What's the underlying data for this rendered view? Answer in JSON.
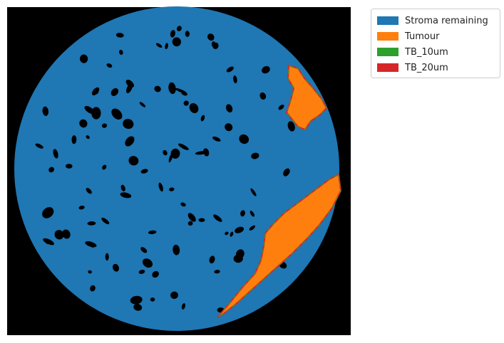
{
  "legend": {
    "items": [
      {
        "label": "Stroma remaining",
        "color": "#1f77b4"
      },
      {
        "label": "Tumour",
        "color": "#ff7f0e"
      },
      {
        "label": "TB_10um",
        "color": "#2ca02c"
      },
      {
        "label": "TB_20um",
        "color": "#d62728"
      }
    ]
  },
  "colors": {
    "background": "#000000",
    "stroma": "#1f77b4",
    "tumour": "#ff7f0e",
    "tb_10um": "#2ca02c",
    "tb_20um": "#d62728"
  }
}
